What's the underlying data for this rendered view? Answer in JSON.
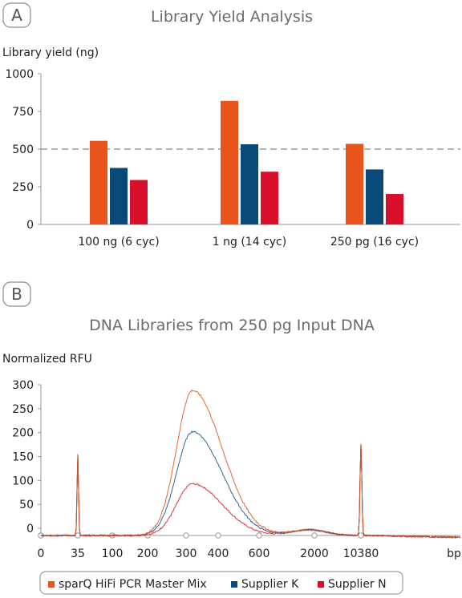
{
  "panels": [
    {
      "letter": "A"
    },
    {
      "letter": "B"
    }
  ],
  "colors": {
    "sparq": "#e8541b",
    "supplier_k": "#0a4a7a",
    "supplier_n": "#d9102c",
    "axis": "#9a9a9a",
    "refline": "#9a9a9a"
  },
  "chart_data": [
    {
      "type": "bar",
      "title": "Library Yield Analysis",
      "ylabel": "Library yield (ng)",
      "xlabel": "",
      "ylim": [
        0,
        1000
      ],
      "yticks": [
        "0",
        "250",
        "500",
        "750",
        "1000"
      ],
      "categories": [
        "100 ng (6 cyc)",
        "1 ng (14 cyc)",
        "250 pg (16 cyc)"
      ],
      "series": [
        {
          "name": "sparQ HiFi PCR Master Mix",
          "values": [
            555,
            820,
            535
          ]
        },
        {
          "name": "Supplier K",
          "values": [
            375,
            532,
            365
          ]
        },
        {
          "name": "Supplier N",
          "values": [
            295,
            350,
            202
          ]
        }
      ],
      "reference_line": {
        "y": 500,
        "style": "dashed"
      },
      "grid": false
    },
    {
      "type": "line",
      "title": "DNA Libraries from 250 pg Input DNA",
      "ylabel": "Normalized RFU",
      "xlabel": "bp",
      "ylim": [
        -15,
        300
      ],
      "yticks": [
        "0",
        "50",
        "100",
        "150",
        "200",
        "250",
        "300"
      ],
      "xticks": [
        "0",
        "35",
        "100",
        "200",
        "300",
        "400",
        "600",
        "2000",
        "10380"
      ],
      "x_unit": "bp",
      "series": [
        {
          "name": "sparQ HiFi PCR Master Mix",
          "peak": 288
        },
        {
          "name": "Supplier K",
          "peak": 202
        },
        {
          "name": "Supplier N",
          "peak": 93
        }
      ],
      "marker_peaks": {
        "35": 155,
        "10380": 175
      },
      "grid": false,
      "legend_position": "bottom"
    }
  ],
  "legend": [
    {
      "label": "sparQ HiFi PCR Master Mix"
    },
    {
      "label": "Supplier K"
    },
    {
      "label": "Supplier N"
    }
  ]
}
